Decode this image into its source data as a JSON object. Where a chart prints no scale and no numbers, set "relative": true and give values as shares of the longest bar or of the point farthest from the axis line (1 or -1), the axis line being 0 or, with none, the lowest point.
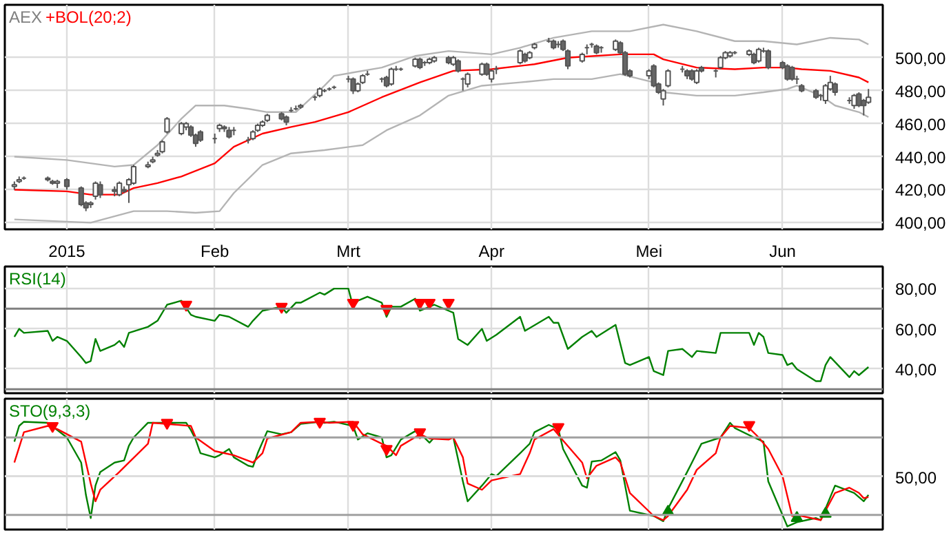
{
  "chart_data": [
    {
      "type": "candlestick",
      "title": "AEX",
      "grid": true,
      "x": [
        "2014-12-22",
        "2014-12-23",
        "2014-12-24",
        "2014-12-29",
        "2014-12-30",
        "2014-12-31",
        "2015-01-02",
        "2015-01-05",
        "2015-01-06",
        "2015-01-07",
        "2015-01-08",
        "2015-01-09",
        "2015-01-12",
        "2015-01-13",
        "2015-01-14",
        "2015-01-15",
        "2015-01-16",
        "2015-01-19",
        "2015-01-20",
        "2015-01-21",
        "2015-01-22",
        "2015-01-23",
        "2015-01-26",
        "2015-01-27",
        "2015-01-28",
        "2015-01-29",
        "2015-01-30",
        "2015-02-02",
        "2015-02-03",
        "2015-02-04",
        "2015-02-05",
        "2015-02-06",
        "2015-02-09",
        "2015-02-10",
        "2015-02-11",
        "2015-02-12",
        "2015-02-13",
        "2015-02-16",
        "2015-02-17",
        "2015-02-18",
        "2015-02-19",
        "2015-02-20",
        "2015-02-23",
        "2015-02-24",
        "2015-02-25",
        "2015-02-26",
        "2015-02-27",
        "2015-03-02",
        "2015-03-03",
        "2015-03-04",
        "2015-03-05",
        "2015-03-06",
        "2015-03-09",
        "2015-03-10",
        "2015-03-11",
        "2015-03-12",
        "2015-03-13",
        "2015-03-16",
        "2015-03-17",
        "2015-03-18",
        "2015-03-19",
        "2015-03-20",
        "2015-03-23",
        "2015-03-24",
        "2015-03-25",
        "2015-03-26",
        "2015-03-27",
        "2015-03-30",
        "2015-03-31",
        "2015-04-01",
        "2015-04-02",
        "2015-04-07",
        "2015-04-08",
        "2015-04-09",
        "2015-04-10",
        "2015-04-13",
        "2015-04-14",
        "2015-04-15",
        "2015-04-16",
        "2015-04-17",
        "2015-04-20",
        "2015-04-21",
        "2015-04-22",
        "2015-04-23",
        "2015-04-24",
        "2015-04-27",
        "2015-04-28",
        "2015-04-29",
        "2015-04-30",
        "2015-05-04",
        "2015-05-05",
        "2015-05-06",
        "2015-05-07",
        "2015-05-08",
        "2015-05-11",
        "2015-05-12",
        "2015-05-13",
        "2015-05-14",
        "2015-05-15",
        "2015-05-18",
        "2015-05-19",
        "2015-05-20",
        "2015-05-21",
        "2015-05-22",
        "2015-05-25",
        "2015-05-26",
        "2015-05-27",
        "2015-05-28",
        "2015-05-29",
        "2015-06-01",
        "2015-06-02",
        "2015-06-03",
        "2015-06-04",
        "2015-06-05",
        "2015-06-08",
        "2015-06-09",
        "2015-06-10",
        "2015-06-11",
        "2015-06-12",
        "2015-06-15",
        "2015-06-16",
        "2015-06-17",
        "2015-06-18",
        "2015-06-19"
      ],
      "ohlc": [
        [
          422,
          425,
          420,
          423
        ],
        [
          425,
          428,
          424,
          426
        ],
        [
          427,
          428,
          426,
          427
        ],
        [
          427,
          428,
          425,
          426
        ],
        [
          425,
          426,
          423,
          424
        ],
        [
          424,
          426,
          421,
          425
        ],
        [
          426,
          427,
          420,
          422
        ],
        [
          421,
          422,
          410,
          411
        ],
        [
          412,
          413,
          407,
          409
        ],
        [
          411,
          413,
          409,
          412
        ],
        [
          416,
          425,
          414,
          424
        ],
        [
          423,
          425,
          415,
          417
        ],
        [
          420,
          422,
          416,
          419
        ],
        [
          417,
          425,
          416,
          424
        ],
        [
          420,
          422,
          418,
          419
        ],
        [
          423,
          427,
          412,
          426
        ],
        [
          424,
          435,
          423,
          434
        ],
        [
          434,
          437,
          433,
          435
        ],
        [
          437,
          440,
          436,
          438
        ],
        [
          441,
          444,
          440,
          442
        ],
        [
          443,
          450,
          442,
          449
        ],
        [
          455,
          464,
          454,
          463
        ],
        [
          454,
          461,
          453,
          460
        ],
        [
          458,
          461,
          456,
          460
        ],
        [
          458,
          459,
          452,
          453
        ],
        [
          453,
          454,
          446,
          448
        ],
        [
          455,
          456,
          449,
          450
        ],
        [
          451,
          454,
          448,
          451
        ],
        [
          457,
          460,
          455,
          459
        ],
        [
          458,
          459,
          455,
          457
        ],
        [
          456,
          458,
          451,
          452
        ],
        [
          456,
          458,
          453,
          456
        ],
        [
          450,
          452,
          448,
          450
        ],
        [
          451,
          456,
          450,
          455
        ],
        [
          456,
          460,
          455,
          459
        ],
        [
          459,
          462,
          458,
          461
        ],
        [
          462,
          466,
          461,
          465
        ],
        [
          466,
          467,
          462,
          463
        ],
        [
          464,
          465,
          459,
          461
        ],
        [
          468,
          470,
          467,
          468
        ],
        [
          469,
          471,
          468,
          469
        ],
        [
          470,
          472,
          469,
          471
        ],
        [
          476,
          477,
          474,
          476
        ],
        [
          477,
          482,
          476,
          481
        ],
        [
          480,
          481,
          479,
          480
        ],
        [
          481,
          482,
          480,
          481
        ],
        [
          482,
          483,
          481,
          482
        ],
        [
          487,
          489,
          485,
          487
        ],
        [
          487,
          488,
          478,
          480
        ],
        [
          480,
          485,
          479,
          484
        ],
        [
          485,
          490,
          484,
          489
        ],
        [
          490,
          492,
          489,
          490
        ],
        [
          487,
          488,
          485,
          487
        ],
        [
          488,
          489,
          482,
          483
        ],
        [
          484,
          494,
          483,
          493
        ],
        [
          493,
          495,
          492,
          493
        ],
        [
          493,
          494,
          492,
          493
        ],
        [
          495,
          500,
          494,
          499
        ],
        [
          499,
          500,
          493,
          494
        ],
        [
          497,
          498,
          495,
          497
        ],
        [
          497,
          500,
          496,
          499
        ],
        [
          498,
          501,
          497,
          500
        ],
        [
          500,
          501,
          496,
          497
        ],
        [
          496,
          501,
          495,
          500
        ],
        [
          498,
          499,
          491,
          492
        ],
        [
          487,
          488,
          480,
          487
        ],
        [
          484,
          491,
          482,
          490
        ],
        [
          490,
          497,
          489,
          496
        ],
        [
          496,
          497,
          489,
          490
        ],
        [
          487,
          493,
          485,
          492
        ],
        [
          493,
          495,
          490,
          493
        ],
        [
          497,
          505,
          496,
          504
        ],
        [
          502,
          503,
          497,
          498
        ],
        [
          500,
          504,
          499,
          503
        ],
        [
          506,
          509,
          505,
          508
        ],
        [
          510,
          512,
          509,
          510
        ],
        [
          510,
          511,
          505,
          506
        ],
        [
          508,
          510,
          506,
          508
        ],
        [
          510,
          511,
          504,
          505
        ],
        [
          504,
          505,
          493,
          495
        ],
        [
          498,
          503,
          497,
          502
        ],
        [
          506,
          508,
          502,
          506
        ],
        [
          508,
          509,
          506,
          508
        ],
        [
          507,
          508,
          502,
          503
        ],
        [
          506,
          507,
          503,
          506
        ],
        [
          505,
          511,
          504,
          510
        ],
        [
          509,
          510,
          502,
          503
        ],
        [
          503,
          504,
          489,
          490
        ],
        [
          492,
          493,
          488,
          489
        ],
        [
          489,
          493,
          487,
          492
        ],
        [
          495,
          496,
          482,
          483
        ],
        [
          484,
          485,
          478,
          479
        ],
        [
          475,
          481,
          471,
          480
        ],
        [
          483,
          493,
          482,
          492
        ],
        [
          493,
          495,
          491,
          493
        ],
        [
          492,
          493,
          487,
          489
        ],
        [
          492,
          493,
          486,
          487
        ],
        [
          485,
          493,
          484,
          492
        ],
        [
          494,
          495,
          491,
          492
        ],
        [
          492,
          493,
          488,
          492
        ],
        [
          494,
          501,
          493,
          500
        ],
        [
          500,
          504,
          499,
          503
        ],
        [
          501,
          504,
          500,
          503
        ],
        [
          503,
          504,
          502,
          503
        ],
        [
          502,
          505,
          501,
          504
        ],
        [
          502,
          503,
          496,
          497
        ],
        [
          498,
          506,
          497,
          505
        ],
        [
          504,
          506,
          503,
          504
        ],
        [
          504,
          505,
          493,
          494
        ],
        [
          497,
          498,
          493,
          494
        ],
        [
          495,
          496,
          486,
          487
        ],
        [
          494,
          495,
          486,
          487
        ],
        [
          487,
          489,
          484,
          487
        ],
        [
          483,
          484,
          479,
          480
        ],
        [
          480,
          481,
          475,
          476
        ],
        [
          477,
          478,
          474,
          477
        ],
        [
          474,
          484,
          472,
          483
        ],
        [
          481,
          489,
          480,
          485
        ],
        [
          484,
          485,
          477,
          479
        ],
        [
          474,
          476,
          472,
          474
        ],
        [
          471,
          478,
          469,
          477
        ],
        [
          478,
          479,
          470,
          471
        ],
        [
          474,
          475,
          465,
          471
        ],
        [
          473,
          481,
          472,
          476
        ]
      ],
      "series": [
        {
          "type": "line",
          "color": "#b4b4b4",
          "x": [
            "2014-12-22",
            "2015-01-02",
            "2015-01-12",
            "2015-01-16",
            "2015-01-21",
            "2015-01-26",
            "2015-01-29",
            "2015-02-04",
            "2015-02-09",
            "2015-02-13",
            "2015-02-19",
            "2015-02-25",
            "2015-02-27",
            "2015-03-09",
            "2015-03-16",
            "2015-03-23",
            "2015-04-01",
            "2015-04-07",
            "2015-04-14",
            "2015-04-22",
            "2015-04-30",
            "2015-05-07",
            "2015-05-14",
            "2015-05-22",
            "2015-05-28",
            "2015-06-04",
            "2015-06-11",
            "2015-06-17",
            "2015-06-19"
          ],
          "values": [
            440,
            438,
            434,
            435,
            447,
            463,
            471,
            471,
            469,
            467,
            467,
            483,
            489,
            494,
            501,
            504,
            502,
            506,
            512,
            516,
            516,
            520,
            516,
            510,
            510,
            508,
            512,
            511,
            508
          ]
        },
        {
          "type": "line",
          "color": "#b4b4b4",
          "x": [
            "2014-12-22",
            "2015-01-07",
            "2015-01-16",
            "2015-01-23",
            "2015-01-29",
            "2015-02-03",
            "2015-02-06",
            "2015-02-12",
            "2015-02-18",
            "2015-02-25",
            "2015-03-05",
            "2015-03-10",
            "2015-03-17",
            "2015-03-23",
            "2015-03-30",
            "2015-04-07",
            "2015-04-14",
            "2015-04-22",
            "2015-04-28",
            "2015-05-05",
            "2015-05-07",
            "2015-05-14",
            "2015-05-22",
            "2015-05-28",
            "2015-06-02",
            "2015-06-04",
            "2015-06-09",
            "2015-06-12",
            "2015-06-17",
            "2015-06-19"
          ],
          "values": [
            402,
            400,
            407,
            407,
            406,
            407,
            418,
            435,
            442,
            444,
            447,
            456,
            465,
            477,
            483,
            485,
            487,
            487,
            490,
            485,
            479,
            477,
            477,
            479,
            481,
            483,
            477,
            471,
            467,
            464
          ]
        },
        {
          "type": "line",
          "name": "+BOL(20;2)",
          "color": "#ff0000",
          "x": [
            "2014-12-22",
            "2015-01-02",
            "2015-01-07",
            "2015-01-13",
            "2015-01-16",
            "2015-01-21",
            "2015-01-26",
            "2015-02-02",
            "2015-02-06",
            "2015-02-12",
            "2015-02-18",
            "2015-02-23",
            "2015-03-02",
            "2015-03-09",
            "2015-03-17",
            "2015-03-24",
            "2015-04-01",
            "2015-04-10",
            "2015-04-17",
            "2015-04-28",
            "2015-05-05",
            "2015-05-07",
            "2015-05-14",
            "2015-05-22",
            "2015-05-28",
            "2015-06-02",
            "2015-06-05",
            "2015-06-11",
            "2015-06-17",
            "2015-06-19"
          ],
          "values": [
            420,
            419,
            417,
            417,
            421,
            424,
            428,
            436,
            446,
            454,
            458,
            461,
            467,
            476,
            485,
            492,
            493,
            496,
            500,
            502,
            502,
            499,
            494,
            493,
            494,
            494,
            493,
            492,
            488,
            485
          ]
        }
      ],
      "xlim": [
        "2014-12-20",
        "2015-06-22"
      ],
      "xticks": [
        {
          "value": "2015-01-02",
          "label": "2015"
        },
        {
          "value": "2015-02-02",
          "label": "Feb"
        },
        {
          "value": "2015-03-02",
          "label": "Mrt"
        },
        {
          "value": "2015-04-01",
          "label": "Apr"
        },
        {
          "value": "2015-05-04",
          "label": "Mei"
        },
        {
          "value": "2015-06-01",
          "label": "Jun"
        }
      ],
      "ylim": [
        396,
        532
      ],
      "yticks": [
        {
          "value": 400,
          "label": "400,00"
        },
        {
          "value": 420,
          "label": "420,00"
        },
        {
          "value": 440,
          "label": "440,00"
        },
        {
          "value": 460,
          "label": "460,00"
        },
        {
          "value": 480,
          "label": "480,00"
        },
        {
          "value": 500,
          "label": "500,00"
        }
      ]
    },
    {
      "type": "line",
      "grid": true,
      "tick_labels": "y",
      "series": [
        {
          "name": "RSI(14)",
          "color": "#008000",
          "x": [
            "2014-12-22",
            "2014-12-23",
            "2014-12-24",
            "2014-12-29",
            "2014-12-30",
            "2014-12-31",
            "2015-01-02",
            "2015-01-05",
            "2015-01-06",
            "2015-01-07",
            "2015-01-08",
            "2015-01-09",
            "2015-01-12",
            "2015-01-13",
            "2015-01-14",
            "2015-01-15",
            "2015-01-19",
            "2015-01-21",
            "2015-01-23",
            "2015-01-26",
            "2015-01-28",
            "2015-01-29",
            "2015-02-02",
            "2015-02-03",
            "2015-02-05",
            "2015-02-09",
            "2015-02-10",
            "2015-02-12",
            "2015-02-16",
            "2015-02-17",
            "2015-02-19",
            "2015-02-20",
            "2015-02-24",
            "2015-02-25",
            "2015-02-27",
            "2015-03-02",
            "2015-03-03",
            "2015-03-04",
            "2015-03-06",
            "2015-03-09",
            "2015-03-10",
            "2015-03-11",
            "2015-03-13",
            "2015-03-16",
            "2015-03-17",
            "2015-03-18",
            "2015-03-20",
            "2015-03-23",
            "2015-03-24",
            "2015-03-25",
            "2015-03-27",
            "2015-03-30",
            "2015-03-31",
            "2015-04-02",
            "2015-04-07",
            "2015-04-08",
            "2015-04-13",
            "2015-04-14",
            "2015-04-15",
            "2015-04-17",
            "2015-04-20",
            "2015-04-22",
            "2015-04-23",
            "2015-04-27",
            "2015-04-29",
            "2015-04-30",
            "2015-05-04",
            "2015-05-05",
            "2015-05-07",
            "2015-05-08",
            "2015-05-11",
            "2015-05-13",
            "2015-05-14",
            "2015-05-18",
            "2015-05-19",
            "2015-05-20",
            "2015-05-25",
            "2015-05-26",
            "2015-05-27",
            "2015-05-28",
            "2015-05-29",
            "2015-06-01",
            "2015-06-02",
            "2015-06-03",
            "2015-06-04",
            "2015-06-08",
            "2015-06-09",
            "2015-06-10",
            "2015-06-11",
            "2015-06-15",
            "2015-06-16",
            "2015-06-17",
            "2015-06-19"
          ],
          "values": [
            56,
            60,
            58,
            59,
            54,
            56,
            54,
            46,
            43,
            44,
            55,
            49,
            52,
            54,
            51,
            58,
            61,
            64,
            72,
            74,
            67,
            66,
            64,
            67,
            66,
            61,
            64,
            69,
            71,
            68,
            73,
            73,
            78,
            77,
            80,
            80,
            71,
            74,
            76,
            73,
            66,
            71,
            71,
            75,
            69,
            70,
            72,
            69,
            68,
            55,
            52,
            60,
            54,
            57,
            66,
            59,
            66,
            63,
            63,
            50,
            56,
            59,
            56,
            62,
            43,
            42,
            46,
            39,
            37,
            49,
            50,
            46,
            49,
            48,
            58,
            58,
            58,
            52,
            58,
            56,
            48,
            47,
            42,
            43,
            40,
            34,
            34,
            42,
            46,
            36,
            39,
            37,
            41
          ]
        },
        {
          "type": "scatter",
          "marker": "triangle_down",
          "color": "#ff0000",
          "x": [
            "2015-01-27",
            "2015-02-16",
            "2015-03-03",
            "2015-03-10",
            "2015-03-17",
            "2015-03-19",
            "2015-03-23"
          ],
          "values": [
            72,
            71,
            73,
            70,
            73,
            73,
            73
          ]
        }
      ],
      "ref_lines": [
        {
          "axis": "y",
          "value": 70,
          "color": "#808080"
        },
        {
          "axis": "y",
          "value": 30,
          "color": "#808080"
        }
      ],
      "xlim": [
        "2014-12-20",
        "2015-06-22"
      ],
      "xticks": [
        {
          "value": "2015-01-02",
          "label": null
        },
        {
          "value": "2015-02-02",
          "label": null
        },
        {
          "value": "2015-03-02",
          "label": null
        },
        {
          "value": "2015-04-01",
          "label": null
        },
        {
          "value": "2015-05-04",
          "label": null
        },
        {
          "value": "2015-06-01",
          "label": null
        }
      ],
      "ylim": [
        28,
        91
      ],
      "yticks": [
        {
          "value": 40,
          "label": "40,00"
        },
        {
          "value": 60,
          "label": "60,00"
        },
        {
          "value": 80,
          "label": "80,00"
        }
      ]
    },
    {
      "type": "line",
      "relative": true,
      "grid": "x",
      "tick_labels": false,
      "annotations": [
        "50,00"
      ],
      "series": [
        {
          "name": "STO(9,3,3)",
          "color": "#008000",
          "x": [
            "2014-12-22",
            "2014-12-23",
            "2014-12-24",
            "2014-12-29",
            "2014-12-31",
            "2015-01-02",
            "2015-01-05",
            "2015-01-06",
            "2015-01-07",
            "2015-01-08",
            "2015-01-09",
            "2015-01-12",
            "2015-01-14",
            "2015-01-15",
            "2015-01-16",
            "2015-01-19",
            "2015-01-23",
            "2015-01-27",
            "2015-01-28",
            "2015-01-29",
            "2015-01-30",
            "2015-02-02",
            "2015-02-03",
            "2015-02-05",
            "2015-02-06",
            "2015-02-09",
            "2015-02-10",
            "2015-02-11",
            "2015-02-13",
            "2015-02-16",
            "2015-02-18",
            "2015-02-20",
            "2015-02-24",
            "2015-02-25",
            "2015-02-27",
            "2015-03-03",
            "2015-03-04",
            "2015-03-06",
            "2015-03-09",
            "2015-03-10",
            "2015-03-11",
            "2015-03-13",
            "2015-03-16",
            "2015-03-17",
            "2015-03-19",
            "2015-03-20",
            "2015-03-24",
            "2015-03-26",
            "2015-03-27",
            "2015-03-30",
            "2015-04-01",
            "2015-04-02",
            "2015-04-07",
            "2015-04-09",
            "2015-04-10",
            "2015-04-13",
            "2015-04-15",
            "2015-04-16",
            "2015-04-20",
            "2015-04-21",
            "2015-04-22",
            "2015-04-24",
            "2015-04-27",
            "2015-04-28",
            "2015-04-30",
            "2015-05-05",
            "2015-05-07",
            "2015-05-08",
            "2015-05-12",
            "2015-05-13",
            "2015-05-15",
            "2015-05-19",
            "2015-05-20",
            "2015-05-21",
            "2015-05-22",
            "2015-05-26",
            "2015-05-28",
            "2015-05-29",
            "2015-06-02",
            "2015-06-04",
            "2015-06-08",
            "2015-06-09",
            "2015-06-10",
            "2015-06-12",
            "2015-06-16",
            "2015-06-18",
            "2015-06-19"
          ],
          "values": [
            0.81,
            0.96,
            1.0,
            0.99,
            0.92,
            0.85,
            0.61,
            0.3,
            0.08,
            0.39,
            0.52,
            0.61,
            0.63,
            0.77,
            0.85,
            0.99,
            0.99,
            0.99,
            0.92,
            0.83,
            0.7,
            0.66,
            0.68,
            0.74,
            0.66,
            0.58,
            0.57,
            0.7,
            0.91,
            0.88,
            0.9,
            0.98,
            1.0,
            0.99,
            1.0,
            0.96,
            0.83,
            0.89,
            0.85,
            0.66,
            0.68,
            0.83,
            0.91,
            0.89,
            0.8,
            0.85,
            0.85,
            0.43,
            0.24,
            0.39,
            0.5,
            0.48,
            0.7,
            0.79,
            0.9,
            0.97,
            0.93,
            0.74,
            0.39,
            0.37,
            0.62,
            0.63,
            0.71,
            0.63,
            0.15,
            0.1,
            0.05,
            0.17,
            0.52,
            0.61,
            0.79,
            0.85,
            0.92,
            0.99,
            0.94,
            0.85,
            0.81,
            0.43,
            0.0,
            0.04,
            0.08,
            0.06,
            0.17,
            0.39,
            0.32,
            0.24,
            0.3
          ]
        },
        {
          "color": "#ff0000",
          "x": [
            "2014-12-22",
            "2014-12-24",
            "2014-12-29",
            "2014-12-31",
            "2015-01-05",
            "2015-01-07",
            "2015-01-08",
            "2015-01-09",
            "2015-01-13",
            "2015-01-15",
            "2015-01-19",
            "2015-01-20",
            "2015-01-28",
            "2015-01-29",
            "2015-02-02",
            "2015-02-04",
            "2015-02-06",
            "2015-02-10",
            "2015-02-12",
            "2015-02-13",
            "2015-02-18",
            "2015-02-20",
            "2015-02-24",
            "2015-02-26",
            "2015-03-03",
            "2015-03-05",
            "2015-03-09",
            "2015-03-10",
            "2015-03-12",
            "2015-03-13",
            "2015-03-17",
            "2015-03-19",
            "2015-03-23",
            "2015-03-24",
            "2015-03-26",
            "2015-03-27",
            "2015-03-30",
            "2015-04-01",
            "2015-04-07",
            "2015-04-09",
            "2015-04-10",
            "2015-04-14",
            "2015-04-16",
            "2015-04-20",
            "2015-04-21",
            "2015-04-23",
            "2015-04-27",
            "2015-04-28",
            "2015-04-30",
            "2015-05-05",
            "2015-05-07",
            "2015-05-08",
            "2015-05-12",
            "2015-05-14",
            "2015-05-18",
            "2015-05-19",
            "2015-05-21",
            "2015-05-25",
            "2015-05-27",
            "2015-05-29",
            "2015-06-01",
            "2015-06-03",
            "2015-06-05",
            "2015-06-09",
            "2015-06-10",
            "2015-06-12",
            "2015-06-15",
            "2015-06-17",
            "2015-06-18",
            "2015-06-19"
          ],
          "values": [
            0.61,
            0.9,
            0.96,
            0.93,
            0.81,
            0.41,
            0.24,
            0.35,
            0.52,
            0.61,
            0.79,
            0.99,
            0.96,
            0.85,
            0.72,
            0.7,
            0.68,
            0.61,
            0.7,
            0.84,
            0.9,
            0.99,
            1.0,
            0.99,
            1.0,
            0.88,
            0.79,
            0.77,
            0.68,
            0.77,
            0.88,
            0.84,
            0.83,
            0.85,
            0.66,
            0.41,
            0.35,
            0.44,
            0.5,
            0.7,
            0.83,
            0.93,
            0.82,
            0.61,
            0.46,
            0.58,
            0.66,
            0.61,
            0.32,
            0.1,
            0.06,
            0.1,
            0.35,
            0.54,
            0.7,
            0.85,
            0.96,
            0.94,
            0.85,
            0.74,
            0.48,
            0.1,
            0.1,
            0.06,
            0.15,
            0.32,
            0.37,
            0.32,
            0.27,
            0.28
          ]
        },
        {
          "type": "scatter",
          "marker": "triangle_down",
          "color": "#ff0000",
          "x": [
            "2014-12-30",
            "2015-01-23",
            "2015-02-24",
            "2015-03-03",
            "2015-03-10",
            "2015-03-17",
            "2015-04-15",
            "2015-05-25"
          ],
          "values": [
            0.96,
            0.99,
            1.0,
            0.97,
            0.74,
            0.9,
            0.95,
            0.97
          ]
        },
        {
          "type": "scatter",
          "marker": "triangle",
          "color": "#008000",
          "x": [
            "2015-05-08",
            "2015-06-04",
            "2015-06-10"
          ],
          "values": [
            0.14,
            0.08,
            0.12
          ]
        }
      ],
      "ref_lines": [
        {
          "axis": "y",
          "value": 0.85,
          "color": "#a0a0a0"
        },
        {
          "axis": "y",
          "value": 0.48,
          "color": "#dddddd"
        },
        {
          "axis": "y",
          "value": 0.11,
          "color": "#a0a0a0"
        }
      ],
      "xlim": [
        "2014-12-20",
        "2015-06-22"
      ],
      "xticks": [
        {
          "value": "2015-01-02",
          "label": null
        },
        {
          "value": "2015-02-02",
          "label": null
        },
        {
          "value": "2015-03-02",
          "label": null
        },
        {
          "value": "2015-04-01",
          "label": null
        },
        {
          "value": "2015-05-04",
          "label": null
        },
        {
          "value": "2015-06-01",
          "label": null
        }
      ]
    }
  ]
}
